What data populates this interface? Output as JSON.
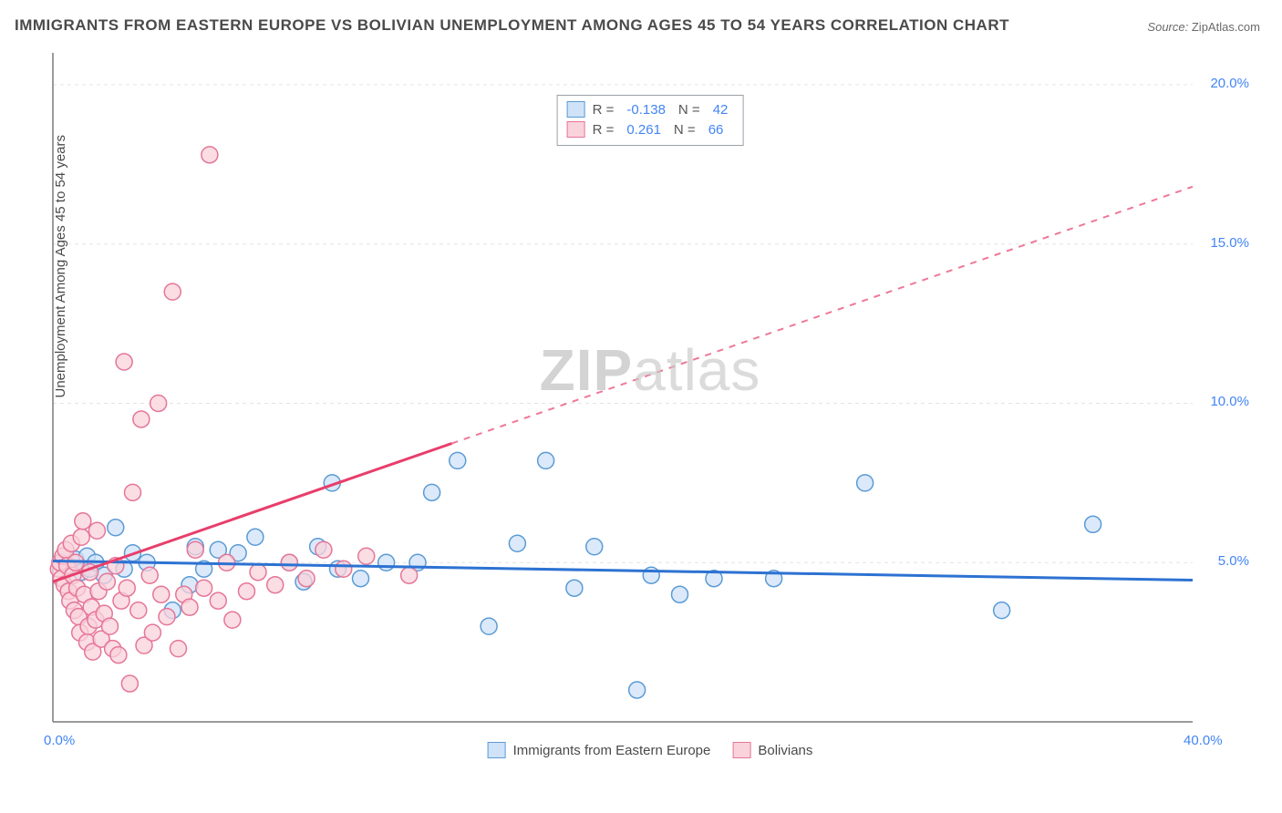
{
  "title": "IMMIGRANTS FROM EASTERN EUROPE VS BOLIVIAN UNEMPLOYMENT AMONG AGES 45 TO 54 YEARS CORRELATION CHART",
  "source_label": "Source:",
  "source_value": "ZipAtlas.com",
  "y_axis_label": "Unemployment Among Ages 45 to 54 years",
  "watermark_a": "ZIP",
  "watermark_b": "atlas",
  "chart": {
    "type": "scatter",
    "xlim": [
      0,
      40
    ],
    "ylim": [
      0,
      21
    ],
    "x_ticks": [
      {
        "v": 0,
        "label": "0.0%"
      },
      {
        "v": 40,
        "label": "40.0%"
      }
    ],
    "y_ticks": [
      {
        "v": 5,
        "label": "5.0%"
      },
      {
        "v": 10,
        "label": "10.0%"
      },
      {
        "v": 15,
        "label": "15.0%"
      },
      {
        "v": 20,
        "label": "20.0%"
      }
    ],
    "grid_color": "#e4e4e4",
    "axis_color": "#7a7a7a",
    "background_color": "#ffffff",
    "marker_radius": 9,
    "marker_stroke_width": 1.5,
    "series": [
      {
        "key": "eastern_europe",
        "label": "Immigrants from Eastern Europe",
        "fill": "#cfe2f8",
        "stroke": "#5b9bd5",
        "line_color": "#2d72d2",
        "line_width": 3,
        "r_value": "-0.138",
        "n_value": "42",
        "trend": {
          "x1": 0,
          "y1": 5.05,
          "x2": 40,
          "y2": 4.45,
          "dashed": false
        },
        "points": [
          [
            0.3,
            5.0
          ],
          [
            0.6,
            4.9
          ],
          [
            0.8,
            5.1
          ],
          [
            1.0,
            4.7
          ],
          [
            1.2,
            5.2
          ],
          [
            1.3,
            4.8
          ],
          [
            1.5,
            5.0
          ],
          [
            1.8,
            4.6
          ],
          [
            2.2,
            6.1
          ],
          [
            2.5,
            4.8
          ],
          [
            2.8,
            5.3
          ],
          [
            3.3,
            5.0
          ],
          [
            4.2,
            3.5
          ],
          [
            5.0,
            5.5
          ],
          [
            5.3,
            4.8
          ],
          [
            5.8,
            5.4
          ],
          [
            6.5,
            5.3
          ],
          [
            7.1,
            5.8
          ],
          [
            8.3,
            5.0
          ],
          [
            8.8,
            4.4
          ],
          [
            9.3,
            5.5
          ],
          [
            10.0,
            4.8
          ],
          [
            10.8,
            4.5
          ],
          [
            11.7,
            5.0
          ],
          [
            12.8,
            5.0
          ],
          [
            13.3,
            7.2
          ],
          [
            14.2,
            8.2
          ],
          [
            15.3,
            3.0
          ],
          [
            16.3,
            5.6
          ],
          [
            17.3,
            8.2
          ],
          [
            18.3,
            4.2
          ],
          [
            19.0,
            5.5
          ],
          [
            20.5,
            1.0
          ],
          [
            21.0,
            4.6
          ],
          [
            22.0,
            4.0
          ],
          [
            23.2,
            4.5
          ],
          [
            25.3,
            4.5
          ],
          [
            28.5,
            7.5
          ],
          [
            33.3,
            3.5
          ],
          [
            36.5,
            6.2
          ],
          [
            4.8,
            4.3
          ],
          [
            9.8,
            7.5
          ]
        ]
      },
      {
        "key": "bolivians",
        "label": "Bolivians",
        "fill": "#f9d2db",
        "stroke": "#e57698",
        "line_color": "#e83e6b",
        "line_width": 3,
        "r_value": "0.261",
        "n_value": "66",
        "trend": {
          "x1": 0,
          "y1": 4.4,
          "x2": 40,
          "y2": 16.8,
          "dashed_after_x": 14
        },
        "points": [
          [
            0.2,
            4.8
          ],
          [
            0.25,
            5.0
          ],
          [
            0.3,
            4.5
          ],
          [
            0.35,
            5.2
          ],
          [
            0.4,
            4.3
          ],
          [
            0.45,
            5.4
          ],
          [
            0.5,
            4.9
          ],
          [
            0.55,
            4.1
          ],
          [
            0.6,
            3.8
          ],
          [
            0.65,
            5.6
          ],
          [
            0.7,
            4.6
          ],
          [
            0.75,
            3.5
          ],
          [
            0.8,
            5.0
          ],
          [
            0.85,
            4.2
          ],
          [
            0.9,
            3.3
          ],
          [
            0.95,
            2.8
          ],
          [
            1.0,
            5.8
          ],
          [
            1.05,
            6.3
          ],
          [
            1.1,
            4.0
          ],
          [
            1.2,
            2.5
          ],
          [
            1.25,
            3.0
          ],
          [
            1.3,
            4.7
          ],
          [
            1.35,
            3.6
          ],
          [
            1.4,
            2.2
          ],
          [
            1.5,
            3.2
          ],
          [
            1.55,
            6.0
          ],
          [
            1.6,
            4.1
          ],
          [
            1.7,
            2.6
          ],
          [
            1.8,
            3.4
          ],
          [
            1.9,
            4.4
          ],
          [
            2.0,
            3.0
          ],
          [
            2.1,
            2.3
          ],
          [
            2.2,
            4.9
          ],
          [
            2.3,
            2.1
          ],
          [
            2.4,
            3.8
          ],
          [
            2.5,
            11.3
          ],
          [
            2.6,
            4.2
          ],
          [
            2.7,
            1.2
          ],
          [
            2.8,
            7.2
          ],
          [
            3.0,
            3.5
          ],
          [
            3.1,
            9.5
          ],
          [
            3.2,
            2.4
          ],
          [
            3.4,
            4.6
          ],
          [
            3.5,
            2.8
          ],
          [
            3.7,
            10.0
          ],
          [
            3.8,
            4.0
          ],
          [
            4.0,
            3.3
          ],
          [
            4.2,
            13.5
          ],
          [
            4.4,
            2.3
          ],
          [
            4.6,
            4.0
          ],
          [
            4.8,
            3.6
          ],
          [
            5.0,
            5.4
          ],
          [
            5.3,
            4.2
          ],
          [
            5.5,
            17.8
          ],
          [
            5.8,
            3.8
          ],
          [
            6.1,
            5.0
          ],
          [
            6.3,
            3.2
          ],
          [
            6.8,
            4.1
          ],
          [
            7.2,
            4.7
          ],
          [
            7.8,
            4.3
          ],
          [
            8.3,
            5.0
          ],
          [
            8.9,
            4.5
          ],
          [
            9.5,
            5.4
          ],
          [
            10.2,
            4.8
          ],
          [
            11.0,
            5.2
          ],
          [
            12.5,
            4.6
          ]
        ]
      }
    ]
  },
  "legend_top_labels": {
    "r": "R =",
    "n": "N ="
  }
}
